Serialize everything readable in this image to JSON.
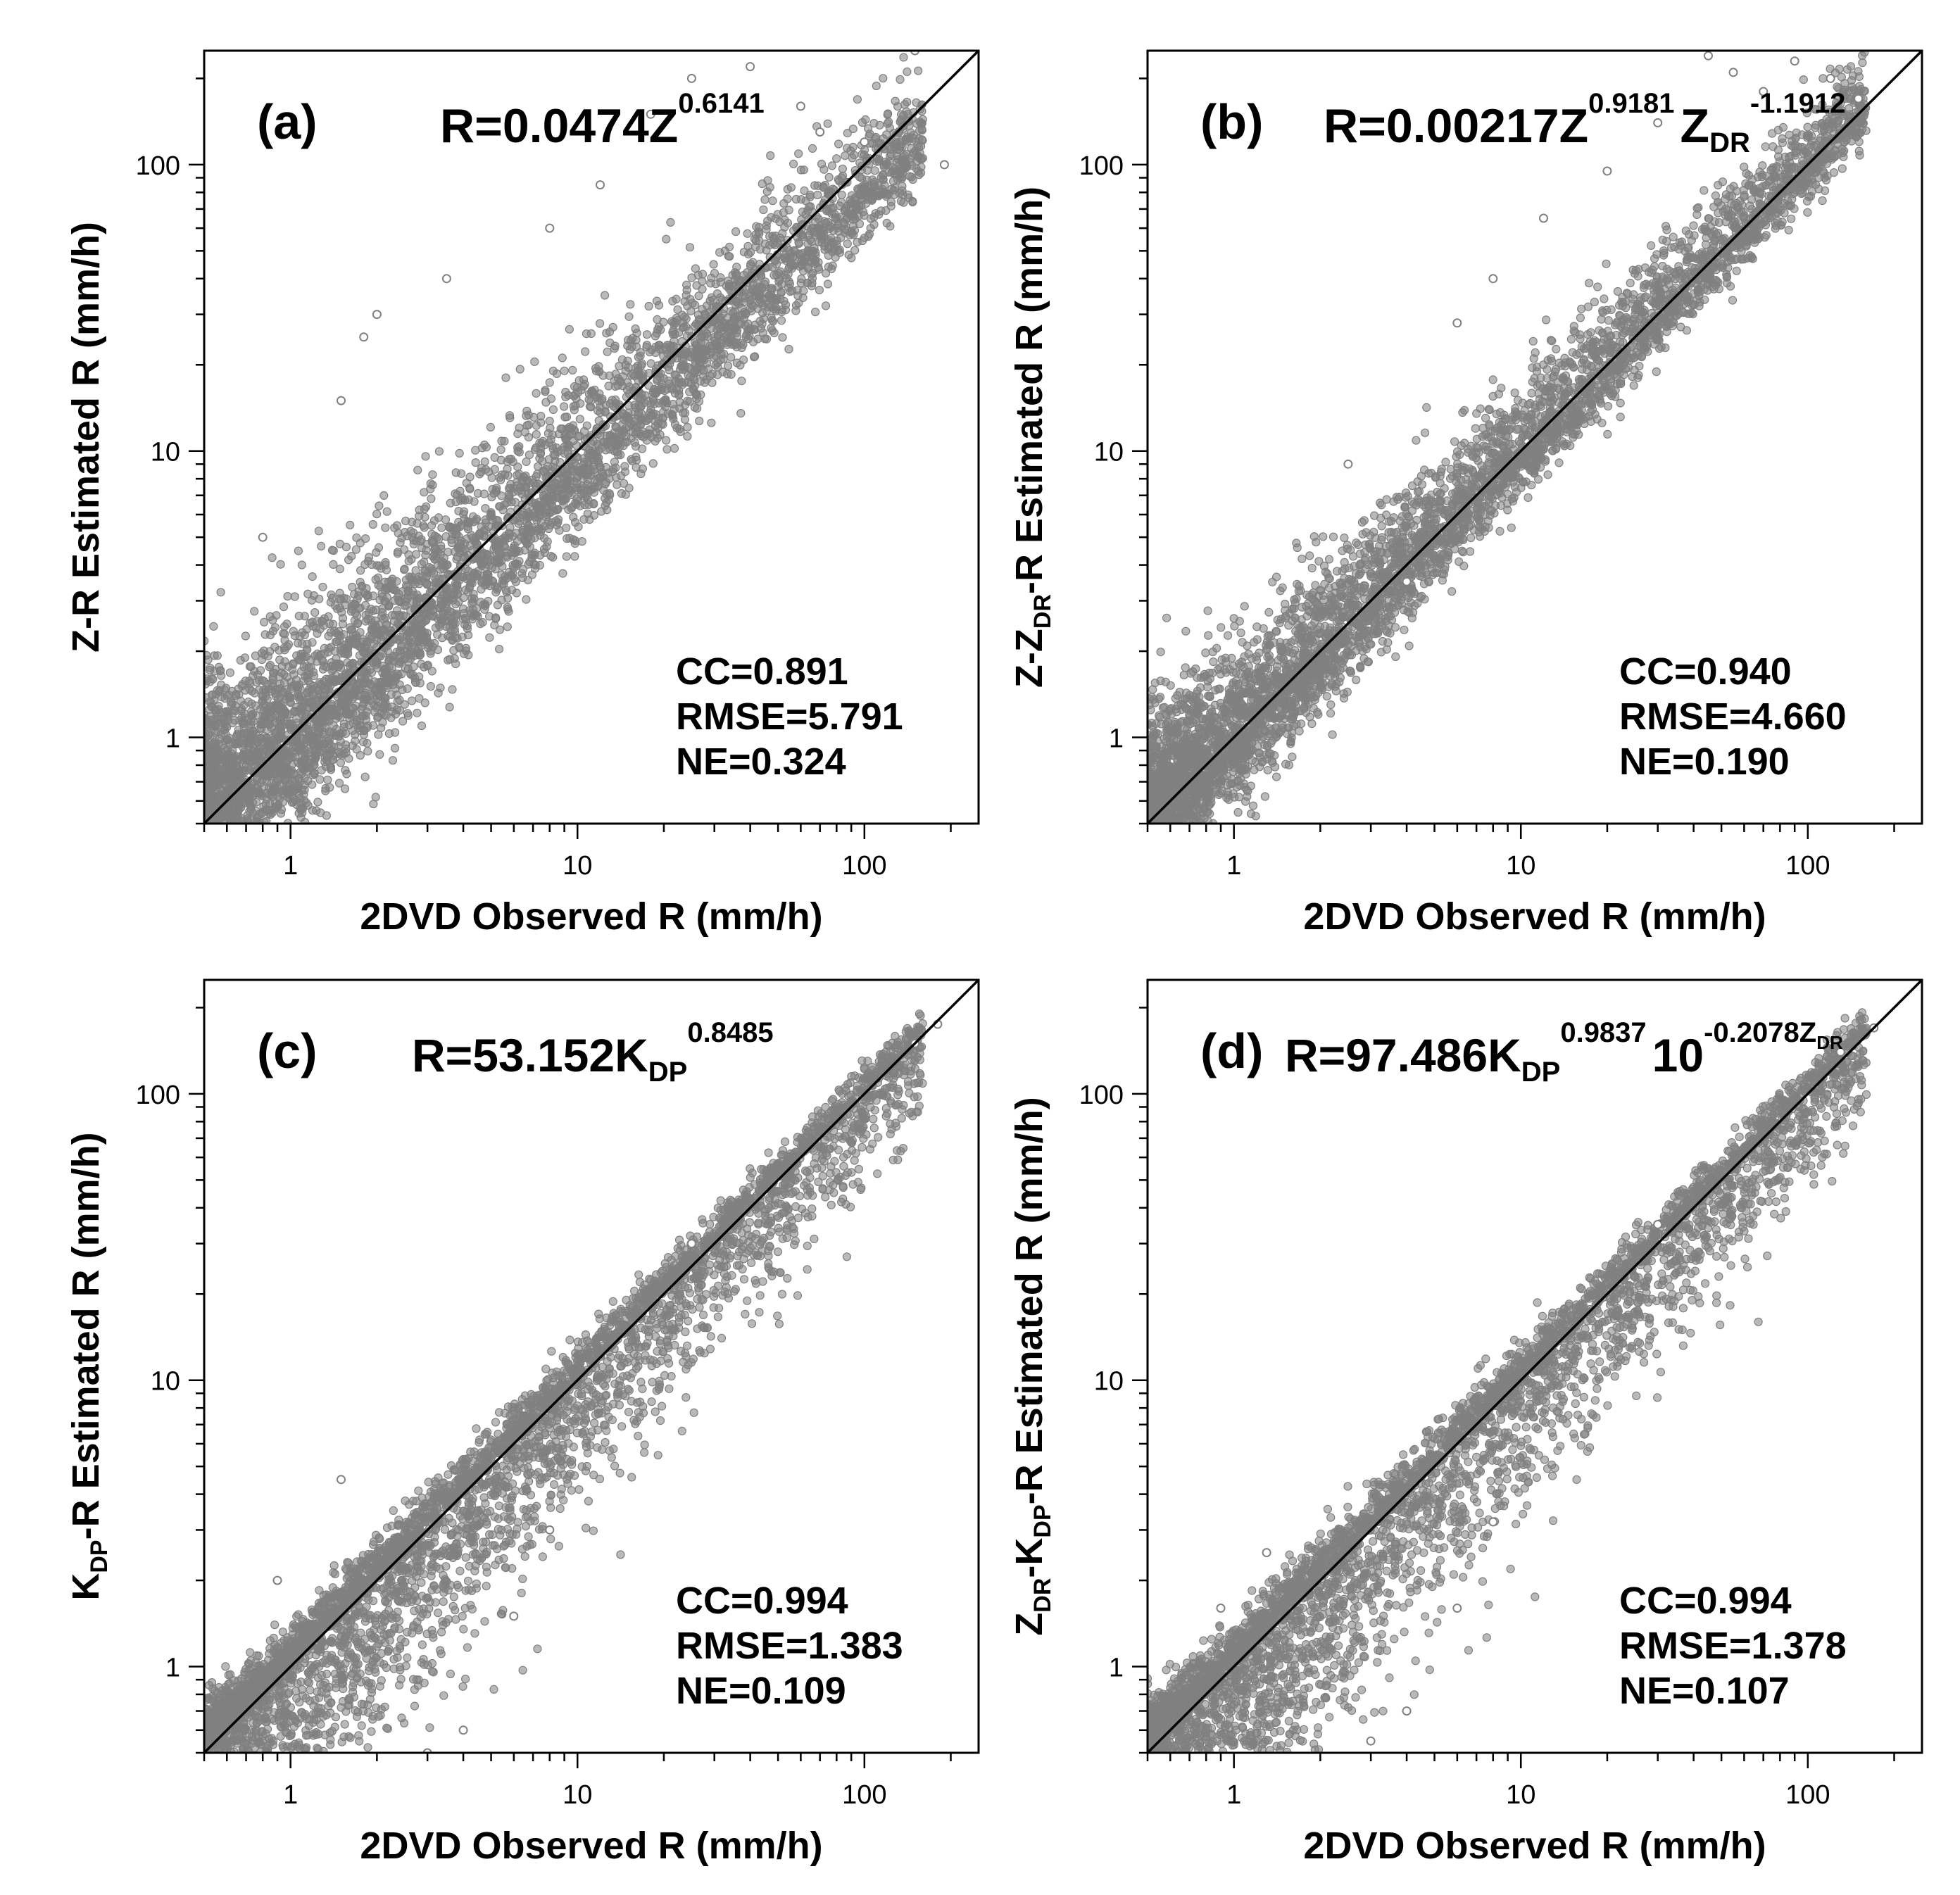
{
  "chart_data": [
    {
      "type": "scatter",
      "panel_label": "(a)",
      "equation": {
        "base": "R=0.0474Z",
        "sup": "0.6141"
      },
      "xlabel": "2DVD Observed R (mm/h)",
      "ylabel": {
        "main": "Z-R Estimated R (mm/h)"
      },
      "xscale": "log",
      "yscale": "log",
      "xlim": [
        0.5,
        250
      ],
      "ylim": [
        0.5,
        250
      ],
      "xticks": [
        {
          "value": 1,
          "label": "1"
        },
        {
          "value": 10,
          "label": "10"
        },
        {
          "value": 100,
          "label": "100"
        }
      ],
      "yticks": [
        {
          "value": 1,
          "label": "1"
        },
        {
          "value": 10,
          "label": "10"
        },
        {
          "value": 100,
          "label": "100"
        }
      ],
      "one_to_one_line": true,
      "point_color": "#808080",
      "stats": {
        "cc": "CC=0.891",
        "rmse": "RMSE=5.791",
        "ne": "NE=0.324"
      },
      "scatter_envelope": {
        "log_spread_above": 0.42,
        "log_spread_below": 0.32,
        "bias_high_end": -0.1
      },
      "outliers": [
        [
          0.8,
          5.0
        ],
        [
          1.5,
          15.0
        ],
        [
          1.8,
          25.0
        ],
        [
          2.0,
          30.0
        ],
        [
          3.5,
          40.0
        ],
        [
          8.0,
          60.0
        ],
        [
          12.0,
          85.0
        ],
        [
          18.0,
          150.0
        ],
        [
          25.0,
          200.0
        ],
        [
          40.0,
          220.0
        ],
        [
          60.0,
          160.0
        ],
        [
          100.0,
          120.0
        ],
        [
          150.0,
          250.0
        ],
        [
          190.0,
          100.0
        ],
        [
          70.0,
          130.0
        ]
      ]
    },
    {
      "type": "scatter",
      "panel_label": "(b)",
      "equation": {
        "base": "R=0.00217Z",
        "sup": "0.9181",
        "base2": "Z",
        "sub2": "DR",
        "sup2": "-1.1912"
      },
      "xlabel": "2DVD Observed R (mm/h)",
      "ylabel": {
        "main": "Z-Z",
        "sub": "DR",
        "rest": "-R Estimated R (mm/h)"
      },
      "xscale": "log",
      "yscale": "log",
      "xlim": [
        0.5,
        250
      ],
      "ylim": [
        0.5,
        250
      ],
      "xticks": [
        {
          "value": 1,
          "label": "1"
        },
        {
          "value": 10,
          "label": "10"
        },
        {
          "value": 100,
          "label": "100"
        }
      ],
      "yticks": [
        {
          "value": 1,
          "label": "1"
        },
        {
          "value": 10,
          "label": "10"
        },
        {
          "value": 100,
          "label": "100"
        }
      ],
      "one_to_one_line": true,
      "point_color": "#808080",
      "stats": {
        "cc": "CC=0.940",
        "rmse": "RMSE=4.660",
        "ne": "NE=0.190"
      },
      "scatter_envelope": {
        "log_spread_above": 0.3,
        "log_spread_below": 0.22,
        "bias_high_end": 0.0
      },
      "outliers": [
        [
          2.5,
          9.0
        ],
        [
          4.0,
          3.5
        ],
        [
          6.0,
          28.0
        ],
        [
          8.0,
          40.0
        ],
        [
          12.0,
          65.0
        ],
        [
          20.0,
          95.0
        ],
        [
          30.0,
          140.0
        ],
        [
          45.0,
          240.0
        ],
        [
          55.0,
          210.0
        ],
        [
          70.0,
          180.0
        ],
        [
          90.0,
          230.0
        ],
        [
          120.0,
          200.0
        ],
        [
          150.0,
          170.0
        ]
      ]
    },
    {
      "type": "scatter",
      "panel_label": "(c)",
      "equation": {
        "base": "R=53.152K",
        "sub": "DP",
        "sup": "0.8485"
      },
      "xlabel": "2DVD Observed R (mm/h)",
      "ylabel": {
        "main": "K",
        "sub": "DP",
        "rest": "-R Estimated R (mm/h)"
      },
      "xscale": "log",
      "yscale": "log",
      "xlim": [
        0.5,
        250
      ],
      "ylim": [
        0.5,
        250
      ],
      "xticks": [
        {
          "value": 1,
          "label": "1"
        },
        {
          "value": 10,
          "label": "10"
        },
        {
          "value": 100,
          "label": "100"
        }
      ],
      "yticks": [
        {
          "value": 1,
          "label": "1"
        },
        {
          "value": 10,
          "label": "10"
        },
        {
          "value": 100,
          "label": "100"
        }
      ],
      "one_to_one_line": true,
      "point_color": "#808080",
      "stats": {
        "cc": "CC=0.994",
        "rmse": "RMSE=1.383",
        "ne": "NE=0.109"
      },
      "scatter_envelope": {
        "log_spread_above": 0.14,
        "log_spread_below": 0.55,
        "bias_high_end": 0.0
      },
      "outliers": [
        [
          0.9,
          2.0
        ],
        [
          1.5,
          4.5
        ],
        [
          3.0,
          0.5
        ],
        [
          4.0,
          0.6
        ],
        [
          6.0,
          1.5
        ],
        [
          8.0,
          3.0
        ],
        [
          180.0,
          175.0
        ],
        [
          150.0,
          150.0
        ],
        [
          25.0,
          30.0
        ]
      ]
    },
    {
      "type": "scatter",
      "panel_label": "(d)",
      "equation": {
        "base": "R=97.486K",
        "sub": "DP",
        "sup": "0.9837",
        "base2": "10",
        "sup2": "-0.2078Z",
        "supsub2": "DR"
      },
      "xlabel": "2DVD Observed R (mm/h)",
      "ylabel": {
        "pre": "Z",
        "presub": "DR",
        "main": "-K",
        "sub": "DP",
        "rest": "-R Estimated R (mm/h)"
      },
      "xscale": "log",
      "yscale": "log",
      "xlim": [
        0.5,
        250
      ],
      "ylim": [
        0.5,
        250
      ],
      "xticks": [
        {
          "value": 1,
          "label": "1"
        },
        {
          "value": 10,
          "label": "10"
        },
        {
          "value": 100,
          "label": "100"
        }
      ],
      "yticks": [
        {
          "value": 1,
          "label": "1"
        },
        {
          "value": 10,
          "label": "10"
        },
        {
          "value": 100,
          "label": "100"
        }
      ],
      "one_to_one_line": true,
      "point_color": "#808080",
      "stats": {
        "cc": "CC=0.994",
        "rmse": "RMSE=1.378",
        "ne": "NE=0.107"
      },
      "scatter_envelope": {
        "log_spread_above": 0.14,
        "log_spread_below": 0.55,
        "bias_high_end": 0.0
      },
      "outliers": [
        [
          0.9,
          1.6
        ],
        [
          1.3,
          2.5
        ],
        [
          3.0,
          0.55
        ],
        [
          4.0,
          0.7
        ],
        [
          6.0,
          1.6
        ],
        [
          8.0,
          3.2
        ],
        [
          170.0,
          170.0
        ],
        [
          130.0,
          140.0
        ],
        [
          30.0,
          35.0
        ]
      ]
    }
  ]
}
